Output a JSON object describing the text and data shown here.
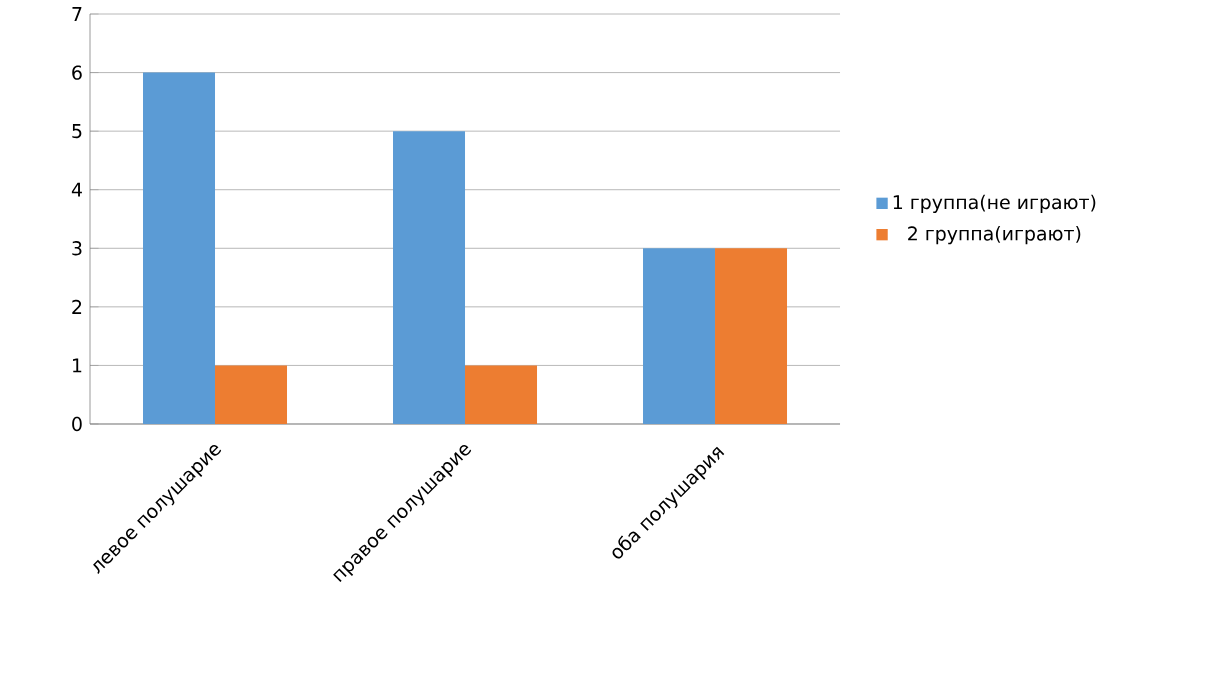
{
  "chart_data": {
    "type": "bar",
    "categories": [
      "левое полушарие",
      "правое полушарие",
      "оба полушария"
    ],
    "series": [
      {
        "name": "1 группа(не играют)",
        "color": "#5b9bd5",
        "values": [
          6,
          5,
          3
        ]
      },
      {
        "name": "2 группа(играют)",
        "color": "#ed7d31",
        "values": [
          1,
          1,
          3
        ]
      }
    ],
    "ylim": [
      0,
      7
    ],
    "yticks": [
      0,
      1,
      2,
      3,
      4,
      5,
      6,
      7
    ],
    "grid": "y",
    "legend": "right"
  }
}
